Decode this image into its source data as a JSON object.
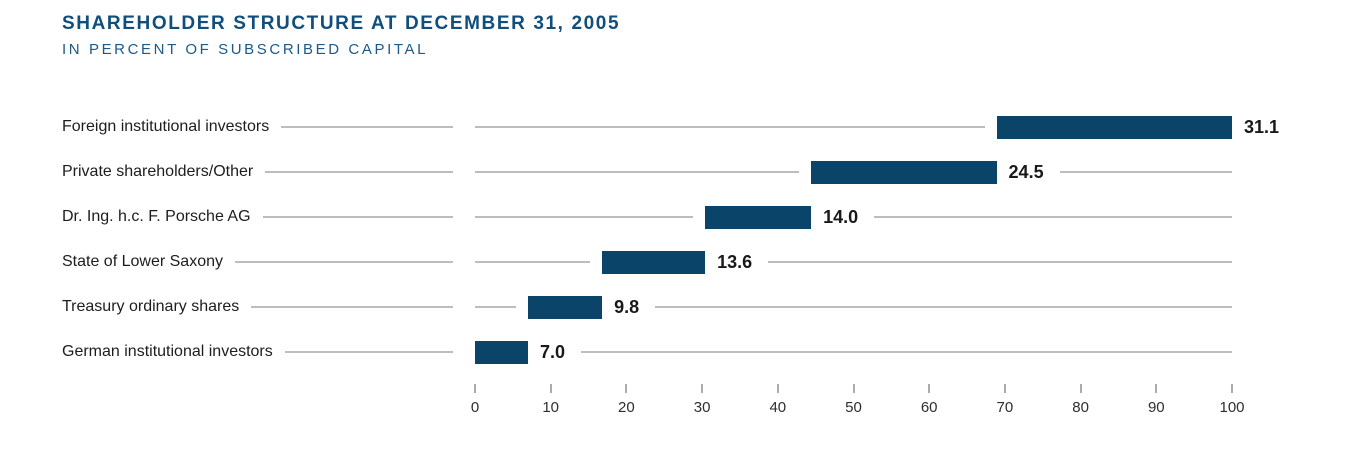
{
  "header": {
    "title": "SHAREHOLDER STRUCTURE AT DECEMBER 31, 2005",
    "subtitle": "IN PERCENT OF SUBSCRIBED CAPITAL"
  },
  "colors": {
    "bar": "#0a4569",
    "heading": "#0f4e7d",
    "gridline": "#bdbdbd",
    "label_text": "#1d1d1b",
    "value_text": "#191919"
  },
  "chart_data": {
    "type": "bar",
    "orientation": "horizontal",
    "variant": "waterfall-cumulative",
    "title": "SHAREHOLDER STRUCTURE AT DECEMBER 31, 2005",
    "subtitle": "IN PERCENT OF SUBSCRIBED CAPITAL",
    "categories": [
      "Foreign institutional investors",
      "Private shareholders/Other",
      "Dr. Ing. h.c. F. Porsche AG",
      "State of Lower Saxony",
      "Treasury ordinary shares",
      "German institutional investors"
    ],
    "values": [
      31.1,
      24.5,
      14.0,
      13.6,
      9.8,
      7.0
    ],
    "value_labels": [
      "31.1",
      "24.5",
      "14.0",
      "13.6",
      "9.8",
      "7.0"
    ],
    "bar_starts": [
      68.9,
      44.4,
      30.4,
      16.8,
      7.0,
      0.0
    ],
    "xlim": [
      0,
      100
    ],
    "x_ticks": [
      0,
      10,
      20,
      30,
      40,
      50,
      60,
      70,
      80,
      90,
      100
    ],
    "xlabel": "",
    "ylabel": "",
    "legend": "none",
    "grid": "per-row horizontal lines",
    "axis_position": "bottom"
  }
}
